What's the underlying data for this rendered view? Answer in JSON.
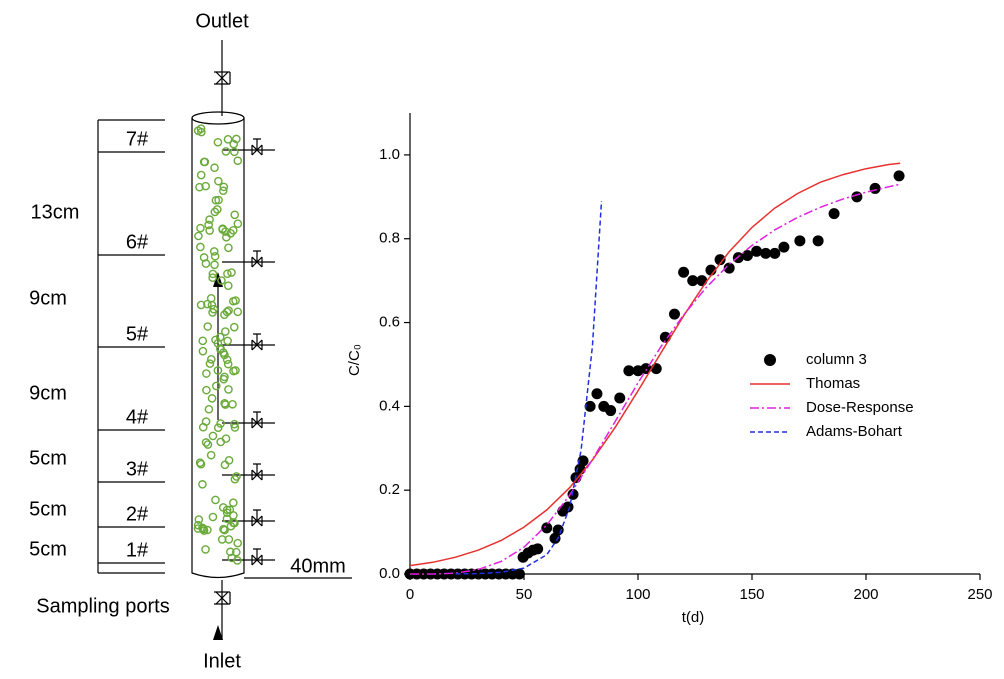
{
  "diagram": {
    "outlet": "Outlet",
    "inlet": "Inlet",
    "sampling_ports": "Sampling ports",
    "diameter": "40mm",
    "ports": [
      "7#",
      "6#",
      "5#",
      "4#",
      "3#",
      "2#",
      "1#"
    ],
    "distances": [
      "13cm",
      "9cm",
      "9cm",
      "5cm",
      "5cm",
      "5cm"
    ]
  },
  "chart_data": {
    "type": "line",
    "xlabel": "t(d)",
    "ylabel": "C/C₀",
    "xlim": [
      0,
      250
    ],
    "xticks": [
      0,
      50,
      100,
      150,
      200,
      250
    ],
    "ylim": [
      0,
      1.1
    ],
    "yticks": [
      {
        "value": 0,
        "label": "0.0"
      },
      {
        "value": 0.2,
        "label": "0.2"
      },
      {
        "value": 0.4,
        "label": "0.4"
      },
      {
        "value": 0.6,
        "label": "0.6"
      },
      {
        "value": 0.8,
        "label": "0.8"
      },
      {
        "value": 1.0,
        "label": "1.0"
      }
    ],
    "legend": "center right",
    "series": [
      {
        "name": "column 3",
        "type": "scatter",
        "color": "#000000",
        "x": [
          0,
          3,
          6,
          9,
          12,
          15,
          18,
          21,
          24,
          27,
          30,
          33,
          36,
          39,
          42,
          45,
          48,
          49.6,
          51.8,
          54,
          56,
          60,
          63.6,
          65,
          67,
          69.3,
          71.5,
          72.8,
          74.6,
          75.9,
          79,
          82,
          85,
          88,
          92,
          96,
          100,
          103.5,
          108,
          112,
          116,
          120,
          124,
          128,
          132,
          136,
          140,
          144,
          148,
          152,
          156,
          160,
          164,
          171,
          179,
          186,
          196,
          204,
          214.5
        ],
        "values": [
          0,
          0,
          0,
          0,
          0,
          0,
          0,
          0,
          0,
          0,
          0,
          0,
          0,
          0,
          0,
          0,
          0,
          0.04,
          0.05,
          0.057,
          0.06,
          0.11,
          0.085,
          0.105,
          0.15,
          0.16,
          0.19,
          0.23,
          0.25,
          0.27,
          0.4,
          0.43,
          0.4,
          0.39,
          0.42,
          0.485,
          0.485,
          0.49,
          0.49,
          0.565,
          0.62,
          0.72,
          0.7,
          0.7,
          0.725,
          0.75,
          0.73,
          0.755,
          0.76,
          0.77,
          0.765,
          0.765,
          0.78,
          0.795,
          0.795,
          0.86,
          0.9,
          0.92,
          0.95
        ]
      },
      {
        "name": "Thomas",
        "type": "line",
        "linestyle": "solid",
        "color": "#e8312f",
        "x": [
          0,
          10,
          20,
          30,
          40,
          50,
          60,
          70,
          80,
          90,
          100,
          110,
          120,
          130,
          140,
          150,
          160,
          170,
          180,
          190,
          200,
          210,
          215
        ],
        "values": [
          0.02,
          0.028,
          0.04,
          0.057,
          0.08,
          0.112,
          0.153,
          0.206,
          0.272,
          0.35,
          0.437,
          0.527,
          0.616,
          0.698,
          0.769,
          0.827,
          0.873,
          0.908,
          0.935,
          0.953,
          0.967,
          0.977,
          0.98
        ]
      },
      {
        "name": "Dose-Response",
        "type": "line",
        "linestyle": "dashdot",
        "color": "#e020e0",
        "x": [
          0,
          10,
          20,
          30,
          40,
          50,
          60,
          70,
          80,
          90,
          100,
          110,
          120,
          130,
          140,
          150,
          160,
          170,
          180,
          190,
          200,
          210,
          215
        ],
        "values": [
          0,
          0.0,
          0.002,
          0.011,
          0.03,
          0.064,
          0.117,
          0.188,
          0.273,
          0.364,
          0.456,
          0.542,
          0.618,
          0.684,
          0.739,
          0.784,
          0.821,
          0.851,
          0.875,
          0.895,
          0.911,
          0.924,
          0.93
        ]
      },
      {
        "name": "Adams-Bohart",
        "type": "line",
        "linestyle": "dashed",
        "color": "#2030e0",
        "x": [
          20,
          30,
          40,
          50,
          60,
          65,
          70,
          75,
          80,
          84
        ],
        "values": [
          0.0003,
          0.001,
          0.004,
          0.014,
          0.046,
          0.086,
          0.159,
          0.294,
          0.543,
          0.89
        ]
      }
    ]
  }
}
